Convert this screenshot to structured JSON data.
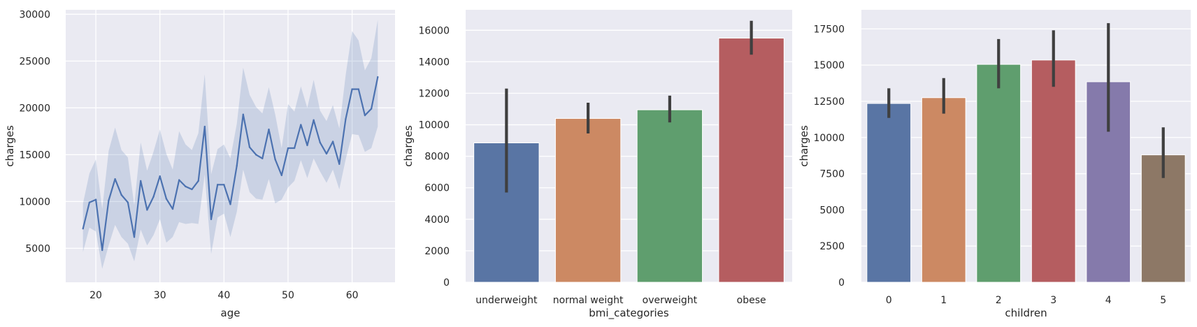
{
  "chart_data": [
    {
      "type": "line",
      "xlabel": "age",
      "ylabel": "charges",
      "xlim": [
        15.3,
        66.7
      ],
      "ylim": [
        1370,
        30480
      ],
      "xticks": [
        20,
        30,
        40,
        50,
        60
      ],
      "yticks": [
        5000,
        10000,
        15000,
        20000,
        25000,
        30000
      ],
      "grid": true,
      "colors": {
        "line": "#4c72b0",
        "band": "#4c72b0",
        "background": "#eaeaf2"
      },
      "x": [
        18,
        19,
        20,
        21,
        22,
        23,
        24,
        25,
        26,
        27,
        28,
        29,
        30,
        31,
        32,
        33,
        34,
        35,
        36,
        37,
        38,
        39,
        40,
        41,
        42,
        43,
        44,
        45,
        46,
        47,
        48,
        49,
        50,
        51,
        52,
        53,
        54,
        55,
        56,
        57,
        58,
        59,
        60,
        61,
        62,
        63,
        64
      ],
      "series": [
        {
          "values": [
            7100,
            9900,
            10200,
            4800,
            10100,
            12400,
            10700,
            9900,
            6200,
            12200,
            9100,
            10500,
            12700,
            10300,
            9200,
            12300,
            11600,
            11300,
            12200,
            18000,
            8100,
            11800,
            11800,
            9700,
            13800,
            19300,
            15800,
            15000,
            14600,
            17700,
            14500,
            12800,
            15700,
            15700,
            18200,
            16000,
            18700,
            16300,
            15100,
            16400,
            14000,
            18800,
            22000,
            22000,
            19200,
            19900,
            23300
          ],
          "ci_low": [
            4600,
            7200,
            6800,
            2800,
            5300,
            7500,
            6200,
            5500,
            3600,
            7000,
            5300,
            6400,
            8100,
            5600,
            6200,
            7800,
            7600,
            7700,
            7600,
            12900,
            4400,
            8300,
            8700,
            6200,
            8900,
            13400,
            11000,
            10300,
            10200,
            12400,
            9800,
            10200,
            11500,
            12200,
            14400,
            12500,
            14600,
            13200,
            12000,
            13400,
            11300,
            14500,
            17200,
            17100,
            15300,
            15700,
            18000
          ],
          "ci_high": [
            9800,
            13000,
            14500,
            9200,
            15400,
            17900,
            15500,
            14700,
            9600,
            16300,
            13300,
            15300,
            17700,
            15100,
            13400,
            17500,
            16100,
            15500,
            17300,
            23600,
            12900,
            15600,
            16100,
            14600,
            18300,
            24300,
            21400,
            20100,
            19400,
            22200,
            19300,
            15700,
            20400,
            19600,
            22300,
            20000,
            23000,
            19700,
            18600,
            20300,
            17800,
            23500,
            28200,
            27200,
            24000,
            25300,
            29400
          ]
        }
      ]
    },
    {
      "type": "bar",
      "xlabel": "bmi_categories",
      "ylabel": "charges",
      "ylim": [
        0,
        17300
      ],
      "yticks": [
        0,
        2000,
        4000,
        6000,
        8000,
        10000,
        12000,
        14000,
        16000
      ],
      "grid": true,
      "categories": [
        "underweight",
        "normal weight",
        "overweight",
        "obese"
      ],
      "values": [
        8850,
        10400,
        10950,
        15500
      ],
      "err_low": [
        5700,
        9450,
        10150,
        14450
      ],
      "err_high": [
        12300,
        11400,
        11850,
        16600
      ],
      "colors": [
        "#5975a4",
        "#cc8963",
        "#5f9e6e",
        "#b55d60"
      ]
    },
    {
      "type": "bar",
      "xlabel": "children",
      "ylabel": "charges",
      "ylim": [
        0,
        18820
      ],
      "yticks": [
        0,
        2500,
        5000,
        7500,
        10000,
        12500,
        15000,
        17500
      ],
      "grid": true,
      "categories": [
        "0",
        "1",
        "2",
        "3",
        "4",
        "5"
      ],
      "values": [
        12350,
        12750,
        15050,
        15350,
        13850,
        8800
      ],
      "err_low": [
        11350,
        11650,
        13400,
        13500,
        10400,
        7200
      ],
      "err_high": [
        13400,
        14100,
        16800,
        17400,
        17900,
        10700
      ],
      "colors": [
        "#5975a4",
        "#cc8963",
        "#5f9e6e",
        "#b55d60",
        "#857aab",
        "#8d7866"
      ]
    }
  ]
}
